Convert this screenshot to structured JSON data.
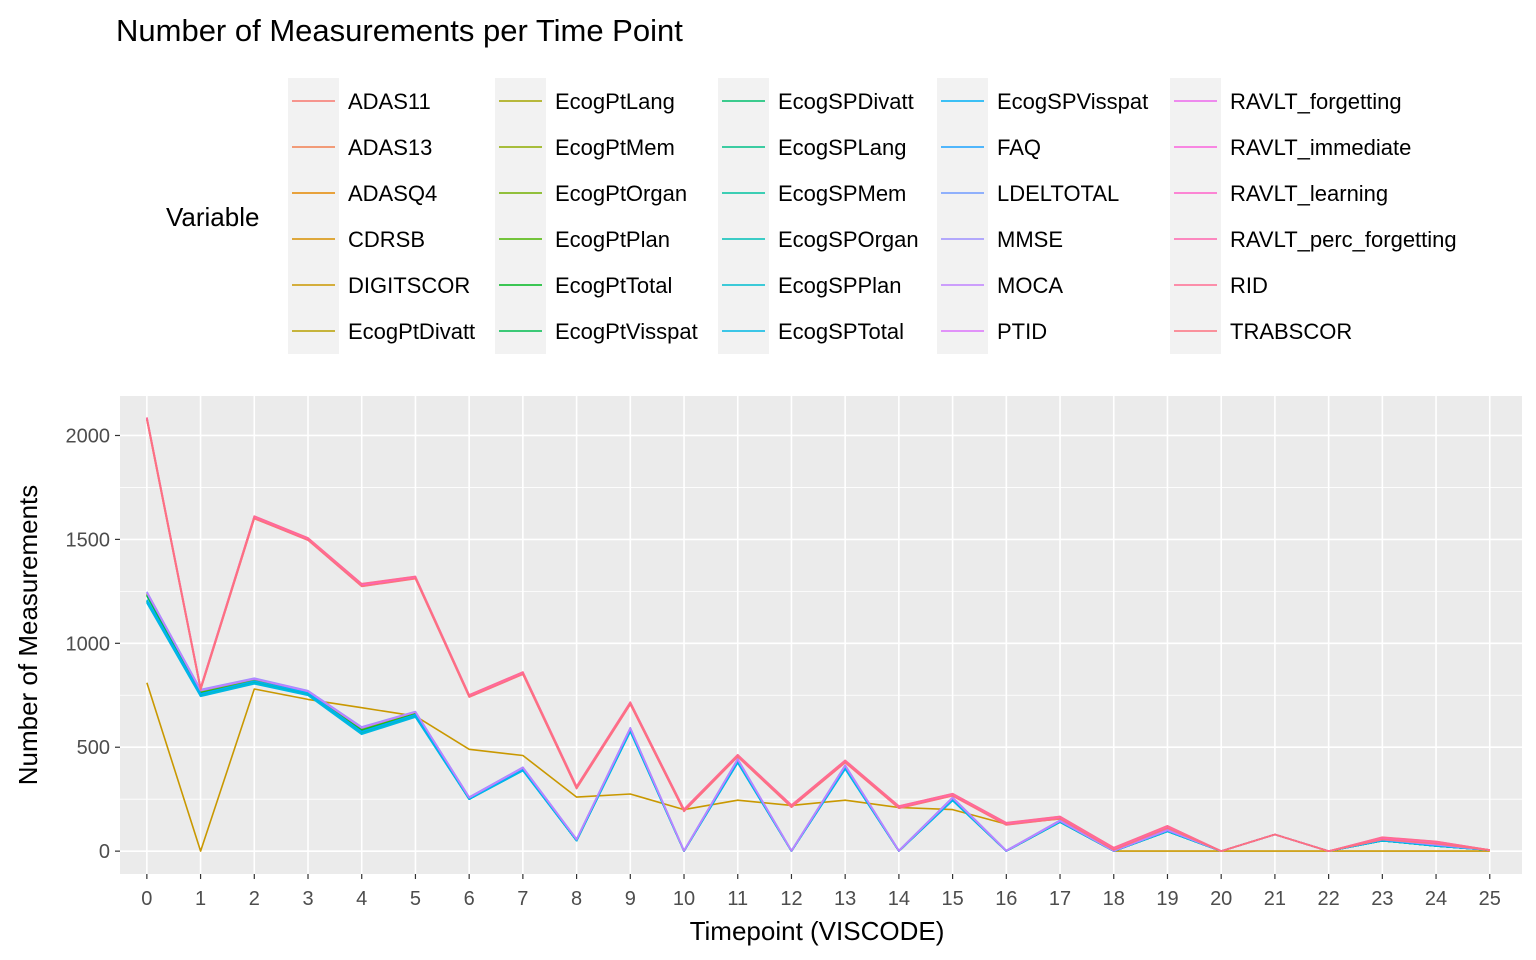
{
  "chart_data": {
    "type": "line",
    "title": "Number of Measurements per Time Point",
    "xlabel": "Timepoint (VISCODE)",
    "ylabel": "Number of Measurements",
    "legend_title": "Variable",
    "legend_position": "top",
    "grid": true,
    "xlim": [
      -0.5,
      25.6
    ],
    "ylim": [
      -110,
      2190
    ],
    "x_ticks": [
      "0",
      "1",
      "2",
      "3",
      "4",
      "5",
      "6",
      "7",
      "8",
      "9",
      "10",
      "11",
      "12",
      "13",
      "14",
      "15",
      "16",
      "17",
      "18",
      "19",
      "20",
      "21",
      "22",
      "23",
      "24",
      "25"
    ],
    "y_ticks": [
      0,
      500,
      1000,
      1500,
      2000
    ],
    "x": [
      0,
      1,
      2,
      3,
      4,
      5,
      6,
      7,
      8,
      9,
      10,
      11,
      12,
      13,
      14,
      15,
      16,
      17,
      18,
      19,
      20,
      21,
      22,
      23,
      24,
      25
    ],
    "series": [
      {
        "name": "ADAS11",
        "color": "#F8766D",
        "values": [
          2080,
          780,
          1605,
          1500,
          1280,
          1315,
          745,
          855,
          305,
          710,
          195,
          460,
          215,
          430,
          210,
          270,
          130,
          160,
          10,
          115,
          0,
          80,
          0,
          60,
          40,
          5
        ]
      },
      {
        "name": "ADAS13",
        "color": "#F17E4F",
        "values": [
          2075,
          778,
          1600,
          1498,
          1275,
          1313,
          743,
          853,
          303,
          708,
          193,
          455,
          213,
          428,
          208,
          268,
          128,
          158,
          8,
          113,
          0,
          80,
          0,
          58,
          38,
          5
        ]
      },
      {
        "name": "ADASQ4",
        "color": "#E58700",
        "values": [
          2082,
          782,
          1608,
          1502,
          1282,
          1317,
          747,
          857,
          307,
          712,
          197,
          458,
          217,
          432,
          212,
          272,
          132,
          162,
          12,
          117,
          0,
          80,
          0,
          62,
          42,
          5
        ]
      },
      {
        "name": "CDRSB",
        "color": "#D89000",
        "values": [
          2085,
          785,
          1610,
          1505,
          1285,
          1320,
          750,
          860,
          310,
          715,
          200,
          462,
          220,
          435,
          215,
          275,
          135,
          165,
          15,
          120,
          0,
          80,
          0,
          65,
          45,
          5
        ]
      },
      {
        "name": "DIGITSCOR",
        "color": "#C99800",
        "values": [
          810,
          0,
          780,
          730,
          690,
          650,
          490,
          460,
          260,
          275,
          200,
          245,
          220,
          245,
          210,
          200,
          130,
          155,
          0,
          0,
          0,
          0,
          0,
          0,
          0,
          0
        ]
      },
      {
        "name": "EcogPtDivatt",
        "color": "#B79F00",
        "values": [
          1240,
          770,
          825,
          765,
          590,
          668,
          255,
          400,
          55,
          590,
          0,
          440,
          0,
          410,
          0,
          255,
          0,
          145,
          0,
          100,
          0,
          80,
          0,
          55,
          30,
          5
        ]
      },
      {
        "name": "EcogPtLang",
        "color": "#A3A500",
        "values": [
          1238,
          768,
          823,
          763,
          588,
          666,
          253,
          398,
          53,
          588,
          0,
          438,
          0,
          408,
          0,
          253,
          0,
          143,
          0,
          98,
          0,
          80,
          0,
          53,
          28,
          5
        ]
      },
      {
        "name": "EcogPtMem",
        "color": "#8EAB00",
        "values": [
          1236,
          766,
          821,
          761,
          586,
          664,
          251,
          396,
          51,
          586,
          0,
          436,
          0,
          406,
          0,
          251,
          0,
          141,
          0,
          96,
          0,
          80,
          0,
          51,
          26,
          5
        ]
      },
      {
        "name": "EcogPtOrgan",
        "color": "#73B000",
        "values": [
          1234,
          764,
          819,
          759,
          584,
          662,
          250,
          395,
          50,
          585,
          0,
          435,
          0,
          405,
          0,
          250,
          0,
          140,
          0,
          95,
          0,
          80,
          0,
          50,
          25,
          5
        ]
      },
      {
        "name": "EcogPtPlan",
        "color": "#4AB400",
        "values": [
          1232,
          762,
          817,
          757,
          582,
          660,
          250,
          394,
          50,
          584,
          0,
          434,
          0,
          404,
          0,
          250,
          0,
          140,
          0,
          95,
          0,
          80,
          0,
          50,
          25,
          5
        ]
      },
      {
        "name": "EcogPtTotal",
        "color": "#00B81F",
        "values": [
          1230,
          760,
          815,
          755,
          580,
          658,
          250,
          393,
          50,
          583,
          0,
          433,
          0,
          403,
          0,
          250,
          0,
          140,
          0,
          95,
          0,
          80,
          0,
          50,
          25,
          5
        ]
      },
      {
        "name": "EcogPtVisspat",
        "color": "#00BB4E",
        "values": [
          1228,
          758,
          813,
          753,
          578,
          656,
          250,
          392,
          50,
          582,
          0,
          432,
          0,
          402,
          0,
          250,
          0,
          140,
          0,
          95,
          0,
          80,
          0,
          50,
          25,
          5
        ]
      },
      {
        "name": "EcogSPDivatt",
        "color": "#00BE6C",
        "values": [
          1205,
          755,
          815,
          760,
          572,
          655,
          250,
          392,
          50,
          580,
          0,
          430,
          0,
          400,
          0,
          248,
          0,
          140,
          0,
          95,
          0,
          80,
          0,
          50,
          25,
          5
        ]
      },
      {
        "name": "EcogSPLang",
        "color": "#00C087",
        "values": [
          1203,
          753,
          813,
          758,
          570,
          653,
          250,
          391,
          50,
          579,
          0,
          429,
          0,
          399,
          0,
          247,
          0,
          140,
          0,
          95,
          0,
          80,
          0,
          50,
          25,
          5
        ]
      },
      {
        "name": "EcogSPMem",
        "color": "#00C1A0",
        "values": [
          1201,
          751,
          811,
          756,
          568,
          651,
          250,
          390,
          50,
          578,
          0,
          428,
          0,
          398,
          0,
          246,
          0,
          140,
          0,
          95,
          0,
          80,
          0,
          50,
          25,
          5
        ]
      },
      {
        "name": "EcogSPOrgan",
        "color": "#00C0B8",
        "values": [
          1199,
          749,
          809,
          754,
          566,
          649,
          250,
          389,
          50,
          577,
          0,
          427,
          0,
          397,
          0,
          245,
          0,
          140,
          0,
          95,
          0,
          80,
          0,
          50,
          25,
          5
        ]
      },
      {
        "name": "EcogSPPlan",
        "color": "#00BDCF",
        "values": [
          1197,
          747,
          807,
          752,
          564,
          647,
          250,
          388,
          50,
          576,
          0,
          426,
          0,
          396,
          0,
          244,
          0,
          140,
          0,
          95,
          0,
          80,
          0,
          50,
          25,
          5
        ]
      },
      {
        "name": "EcogSPTotal",
        "color": "#00B8E3",
        "values": [
          1195,
          745,
          805,
          750,
          562,
          645,
          250,
          387,
          50,
          575,
          0,
          425,
          0,
          395,
          0,
          243,
          0,
          140,
          0,
          95,
          0,
          80,
          0,
          50,
          25,
          5
        ]
      },
      {
        "name": "EcogSPVisspat",
        "color": "#00B0F6",
        "values": [
          1210,
          757,
          818,
          762,
          575,
          657,
          252,
          393,
          52,
          582,
          0,
          432,
          0,
          402,
          0,
          250,
          0,
          142,
          0,
          97,
          0,
          80,
          0,
          52,
          27,
          5
        ]
      },
      {
        "name": "FAQ",
        "color": "#1AA2FF",
        "values": [
          1245,
          775,
          830,
          770,
          595,
          670,
          258,
          402,
          57,
          592,
          2,
          442,
          2,
          412,
          2,
          257,
          2,
          147,
          2,
          102,
          0,
          80,
          0,
          57,
          32,
          5
        ]
      },
      {
        "name": "LDELTOTAL",
        "color": "#6E9AFF",
        "values": [
          1242,
          772,
          828,
          768,
          592,
          670,
          256,
          400,
          55,
          590,
          0,
          440,
          0,
          410,
          0,
          255,
          0,
          145,
          0,
          100,
          0,
          80,
          0,
          55,
          30,
          5
        ]
      },
      {
        "name": "MMSE",
        "color": "#9C8FFF",
        "values": [
          1248,
          778,
          832,
          772,
          598,
          672,
          260,
          404,
          58,
          594,
          3,
          444,
          3,
          414,
          3,
          259,
          3,
          149,
          3,
          104,
          0,
          80,
          0,
          59,
          34,
          5
        ]
      },
      {
        "name": "MOCA",
        "color": "#BF82FF",
        "values": [
          1244,
          774,
          829,
          769,
          594,
          669,
          257,
          401,
          56,
          591,
          1,
          441,
          1,
          411,
          1,
          256,
          1,
          146,
          1,
          101,
          0,
          80,
          0,
          56,
          31,
          5
        ]
      },
      {
        "name": "PTID",
        "color": "#DB72FB",
        "values": [
          2086,
          786,
          1611,
          1506,
          1286,
          1321,
          751,
          861,
          311,
          716,
          201,
          463,
          221,
          436,
          216,
          276,
          136,
          166,
          16,
          121,
          0,
          80,
          0,
          66,
          46,
          5
        ]
      },
      {
        "name": "RAVLT_forgetting",
        "color": "#ED68ED",
        "values": [
          2079,
          779,
          1603,
          1499,
          1278,
          1314,
          744,
          854,
          304,
          709,
          194,
          457,
          214,
          429,
          209,
          269,
          129,
          159,
          9,
          114,
          0,
          80,
          0,
          59,
          39,
          5
        ]
      },
      {
        "name": "RAVLT_immediate",
        "color": "#F962DD",
        "values": [
          2081,
          781,
          1606,
          1501,
          1281,
          1316,
          746,
          856,
          306,
          711,
          196,
          459,
          216,
          431,
          211,
          271,
          131,
          161,
          11,
          116,
          0,
          80,
          0,
          61,
          41,
          5
        ]
      },
      {
        "name": "RAVLT_learning",
        "color": "#FF61C9",
        "values": [
          2083,
          783,
          1609,
          1503,
          1283,
          1318,
          748,
          858,
          308,
          713,
          198,
          461,
          218,
          433,
          213,
          273,
          133,
          163,
          13,
          118,
          0,
          80,
          0,
          63,
          43,
          5
        ]
      },
      {
        "name": "RAVLT_perc_forgetting",
        "color": "#FF65AE",
        "values": [
          2077,
          777,
          1602,
          1497,
          1276,
          1312,
          742,
          852,
          302,
          707,
          192,
          456,
          212,
          427,
          207,
          267,
          127,
          157,
          7,
          112,
          0,
          80,
          0,
          57,
          37,
          5
        ]
      },
      {
        "name": "RID",
        "color": "#FF6C91",
        "values": [
          2087,
          787,
          1612,
          1507,
          1287,
          1322,
          752,
          862,
          312,
          717,
          202,
          464,
          222,
          437,
          217,
          277,
          137,
          167,
          17,
          122,
          0,
          80,
          0,
          67,
          47,
          5
        ]
      },
      {
        "name": "TRABSCOR",
        "color": "#FC717F",
        "values": [
          2076,
          776,
          1601,
          1496,
          1274,
          1311,
          741,
          851,
          301,
          706,
          191,
          454,
          211,
          426,
          206,
          266,
          126,
          156,
          6,
          111,
          0,
          80,
          0,
          56,
          36,
          5
        ]
      }
    ]
  }
}
